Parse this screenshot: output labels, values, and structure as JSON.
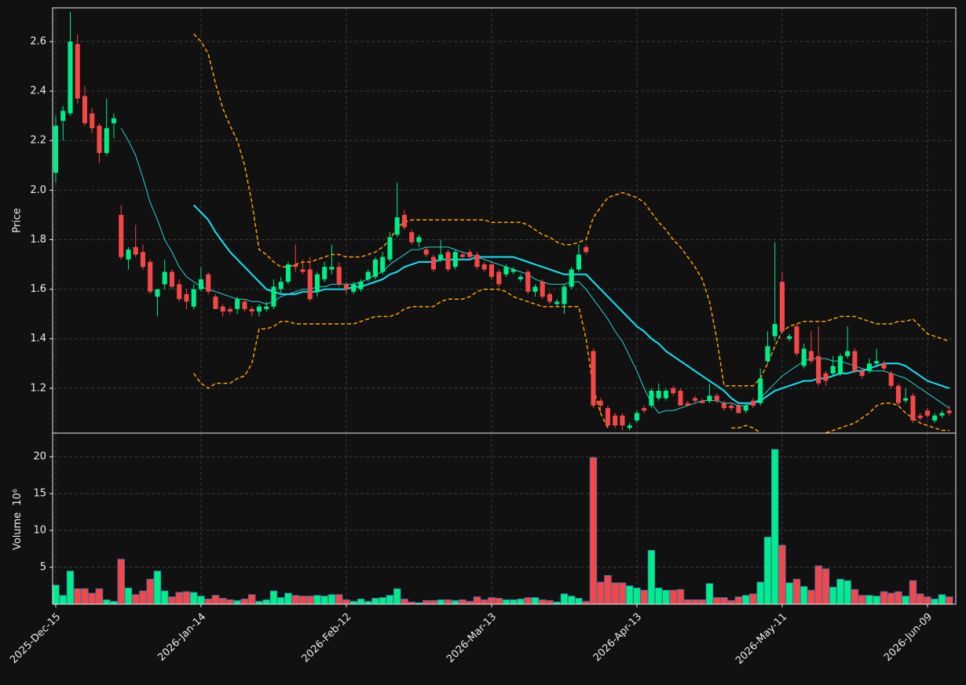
{
  "chart_data": {
    "type": "candlestick",
    "ylabel": "Price",
    "volume_ylabel": "Volume",
    "volume_offset": "10⁶",
    "categories": [
      "2025-Dec-15",
      null,
      null,
      null,
      null,
      null,
      null,
      null,
      null,
      null,
      null,
      null,
      null,
      null,
      null,
      null,
      null,
      null,
      null,
      null,
      "2026-Jan-14",
      null,
      null,
      null,
      null,
      null,
      null,
      null,
      null,
      null,
      null,
      null,
      null,
      null,
      null,
      null,
      null,
      null,
      null,
      null,
      "2026-Feb-12",
      null,
      null,
      null,
      null,
      null,
      null,
      null,
      null,
      null,
      null,
      null,
      null,
      null,
      null,
      null,
      null,
      null,
      null,
      null,
      "2026-Mar-13",
      null,
      null,
      null,
      null,
      null,
      null,
      null,
      null,
      null,
      null,
      null,
      null,
      null,
      null,
      null,
      null,
      null,
      null,
      null,
      "2026-Apr-13",
      null,
      null,
      null,
      null,
      null,
      null,
      null,
      null,
      null,
      null,
      null,
      null,
      null,
      null,
      null,
      null,
      null,
      null,
      null,
      "2026-May-11",
      null,
      null,
      null,
      null,
      null,
      null,
      null,
      null,
      null,
      null,
      null,
      null,
      null,
      null,
      null,
      null,
      null,
      null,
      null,
      "2026-Jun-09",
      null,
      null,
      null
    ],
    "xlim": [
      -0.43,
      123.9
    ],
    "open": [
      2.07,
      2.28,
      2.31,
      2.59,
      2.38,
      2.31,
      2.26,
      2.15,
      2.27,
      1.9,
      1.72,
      1.77,
      1.75,
      1.71,
      1.57,
      1.62,
      1.67,
      1.62,
      1.58,
      1.53,
      1.6,
      1.66,
      1.57,
      1.53,
      1.52,
      1.52,
      1.55,
      1.52,
      1.51,
      1.52,
      1.53,
      1.6,
      1.63,
      1.7,
      1.68,
      1.68,
      1.59,
      1.64,
      1.68,
      1.69,
      1.62,
      1.59,
      1.6,
      1.64,
      1.65,
      1.67,
      1.72,
      1.82,
      1.9,
      1.83,
      1.79,
      1.76,
      1.73,
      1.72,
      1.75,
      1.69,
      1.74,
      1.75,
      1.74,
      1.7,
      1.7,
      1.67,
      1.66,
      1.67,
      1.64,
      1.67,
      1.59,
      1.63,
      1.58,
      1.54,
      1.54,
      1.61,
      1.68,
      1.77,
      1.35,
      1.15,
      1.12,
      1.09,
      1.09,
      1.04,
      1.07,
      1.12,
      1.13,
      1.16,
      1.16,
      1.2,
      1.19,
      1.14,
      1.16,
      1.15,
      1.15,
      1.17,
      1.14,
      1.13,
      1.13,
      1.11,
      1.15,
      1.14,
      1.31,
      1.41,
      1.63,
      1.4,
      1.45,
      1.29,
      1.35,
      1.33,
      1.26,
      1.26,
      1.26,
      1.33,
      1.35,
      1.27,
      1.27,
      1.3,
      1.3,
      1.26,
      1.21,
      1.15,
      1.17,
      1.09,
      1.11,
      1.07,
      1.09,
      1.11
    ],
    "high": [
      2.3,
      2.34,
      2.72,
      2.63,
      2.42,
      2.33,
      2.27,
      2.37,
      2.31,
      1.94,
      1.77,
      1.86,
      1.78,
      1.72,
      1.6,
      1.72,
      1.68,
      1.64,
      1.6,
      1.62,
      1.69,
      1.67,
      1.58,
      1.54,
      1.53,
      1.57,
      1.56,
      1.53,
      1.54,
      1.55,
      1.64,
      1.65,
      1.71,
      1.78,
      1.72,
      1.73,
      1.67,
      1.71,
      1.78,
      1.71,
      1.63,
      1.63,
      1.64,
      1.68,
      1.73,
      1.75,
      1.83,
      2.03,
      1.92,
      1.84,
      1.82,
      1.77,
      1.74,
      1.8,
      1.76,
      1.76,
      1.75,
      1.76,
      1.75,
      1.71,
      1.71,
      1.68,
      1.7,
      1.69,
      1.66,
      1.68,
      1.62,
      1.64,
      1.59,
      1.56,
      1.62,
      1.69,
      1.78,
      1.78,
      1.36,
      1.16,
      1.13,
      1.1,
      1.1,
      1.06,
      1.11,
      1.13,
      1.2,
      1.22,
      1.2,
      1.21,
      1.2,
      1.15,
      1.17,
      1.16,
      1.22,
      1.18,
      1.15,
      1.14,
      1.14,
      1.14,
      1.16,
      1.28,
      1.43,
      1.79,
      1.67,
      1.42,
      1.46,
      1.38,
      1.43,
      1.45,
      1.27,
      1.33,
      1.34,
      1.45,
      1.36,
      1.28,
      1.32,
      1.36,
      1.31,
      1.27,
      1.22,
      1.2,
      1.18,
      1.1,
      1.12,
      1.1,
      1.11,
      1.13
    ],
    "low": [
      2.03,
      2.2,
      2.3,
      2.35,
      2.26,
      2.23,
      2.11,
      2.14,
      2.21,
      1.72,
      1.68,
      1.73,
      1.68,
      1.58,
      1.49,
      1.6,
      1.6,
      1.55,
      1.52,
      1.52,
      1.59,
      1.58,
      1.52,
      1.49,
      1.5,
      1.5,
      1.51,
      1.49,
      1.49,
      1.51,
      1.52,
      1.58,
      1.62,
      1.67,
      1.66,
      1.55,
      1.57,
      1.63,
      1.66,
      1.61,
      1.58,
      1.58,
      1.59,
      1.63,
      1.64,
      1.66,
      1.71,
      1.81,
      1.84,
      1.78,
      1.77,
      1.73,
      1.67,
      1.71,
      1.67,
      1.68,
      1.72,
      1.72,
      1.68,
      1.67,
      1.64,
      1.61,
      1.65,
      1.66,
      1.63,
      1.58,
      1.57,
      1.56,
      1.54,
      1.53,
      1.5,
      1.6,
      1.67,
      1.74,
      1.12,
      1.1,
      1.04,
      1.04,
      1.03,
      1.03,
      1.06,
      1.1,
      1.12,
      1.15,
      1.15,
      1.17,
      1.13,
      1.13,
      1.14,
      1.14,
      1.14,
      1.14,
      1.11,
      1.11,
      1.1,
      1.1,
      1.12,
      1.13,
      1.3,
      1.39,
      1.42,
      1.39,
      1.33,
      1.28,
      1.3,
      1.21,
      1.21,
      1.25,
      1.25,
      1.32,
      1.26,
      1.24,
      1.26,
      1.29,
      1.27,
      1.2,
      1.13,
      1.14,
      1.06,
      1.07,
      1.08,
      1.06,
      1.08,
      1.09
    ],
    "close": [
      2.26,
      2.32,
      2.6,
      2.37,
      2.27,
      2.25,
      2.15,
      2.25,
      2.29,
      1.73,
      1.76,
      1.74,
      1.69,
      1.59,
      1.6,
      1.67,
      1.61,
      1.56,
      1.55,
      1.6,
      1.64,
      1.59,
      1.52,
      1.51,
      1.51,
      1.56,
      1.52,
      1.51,
      1.53,
      1.53,
      1.61,
      1.63,
      1.7,
      1.69,
      1.67,
      1.56,
      1.66,
      1.69,
      1.69,
      1.62,
      1.6,
      1.62,
      1.63,
      1.67,
      1.72,
      1.73,
      1.81,
      1.89,
      1.85,
      1.79,
      1.81,
      1.74,
      1.68,
      1.74,
      1.68,
      1.75,
      1.73,
      1.73,
      1.69,
      1.68,
      1.65,
      1.62,
      1.69,
      1.68,
      1.65,
      1.59,
      1.61,
      1.57,
      1.55,
      1.55,
      1.61,
      1.68,
      1.74,
      1.75,
      1.13,
      1.13,
      1.05,
      1.05,
      1.05,
      1.05,
      1.1,
      1.11,
      1.19,
      1.19,
      1.19,
      1.18,
      1.13,
      1.13,
      1.15,
      1.14,
      1.17,
      1.15,
      1.12,
      1.12,
      1.1,
      1.13,
      1.13,
      1.24,
      1.37,
      1.46,
      1.43,
      1.41,
      1.34,
      1.36,
      1.31,
      1.22,
      1.23,
      1.29,
      1.33,
      1.35,
      1.27,
      1.25,
      1.3,
      1.31,
      1.28,
      1.21,
      1.14,
      1.16,
      1.07,
      1.08,
      1.09,
      1.09,
      1.1,
      1.1
    ],
    "volume": [
      2.6,
      1.2,
      4.5,
      2.1,
      2.1,
      1.5,
      2.1,
      0.6,
      0.4,
      6.1,
      2.2,
      1.3,
      1.8,
      3.4,
      4.5,
      1.8,
      1.0,
      1.6,
      1.7,
      1.6,
      1.1,
      0.7,
      1.2,
      0.8,
      0.6,
      0.5,
      0.7,
      1.3,
      0.4,
      0.6,
      1.8,
      0.9,
      1.5,
      1.2,
      1.1,
      1.1,
      1.2,
      1.1,
      1.3,
      1.3,
      0.6,
      0.4,
      0.7,
      0.4,
      0.8,
      0.9,
      1.2,
      2.1,
      0.7,
      0.3,
      0.2,
      0.5,
      0.5,
      0.6,
      0.6,
      0.5,
      0.6,
      0.4,
      1.0,
      0.6,
      0.9,
      0.8,
      0.6,
      0.6,
      0.7,
      0.9,
      0.9,
      0.6,
      0.5,
      0.3,
      1.4,
      1.1,
      0.8,
      0.4,
      19.9,
      3.0,
      3.9,
      2.9,
      2.9,
      2.5,
      2.2,
      1.9,
      7.3,
      2.2,
      1.9,
      1.9,
      2.0,
      0.6,
      0.6,
      0.6,
      2.8,
      0.9,
      0.9,
      0.5,
      1.0,
      1.2,
      1.4,
      3.0,
      9.1,
      21.0,
      8.0,
      2.9,
      3.4,
      2.4,
      1.9,
      5.2,
      4.8,
      2.3,
      3.4,
      3.2,
      2.0,
      1.2,
      1.2,
      1.1,
      1.7,
      1.5,
      1.7,
      1.1,
      3.2,
      1.4,
      1.0,
      0.7,
      1.3,
      1.0
    ],
    "overlays": [
      {
        "color": "#2ad4d4",
        "width": 1,
        "dash": false,
        "values": [
          null,
          null,
          null,
          null,
          null,
          null,
          null,
          null,
          null,
          2.25,
          2.2,
          2.14,
          2.05,
          1.95,
          1.88,
          1.8,
          1.75,
          1.69,
          1.65,
          1.63,
          1.61,
          1.6,
          1.59,
          1.58,
          1.57,
          1.56,
          1.56,
          1.55,
          1.55,
          1.54,
          1.55,
          1.57,
          1.58,
          1.59,
          1.6,
          1.6,
          1.61,
          1.61,
          1.62,
          1.62,
          1.62,
          1.62,
          1.63,
          1.64,
          1.66,
          1.67,
          1.7,
          1.72,
          1.74,
          1.76,
          1.76,
          1.77,
          1.77,
          1.77,
          1.77,
          1.76,
          1.75,
          1.74,
          1.73,
          1.72,
          1.71,
          1.7,
          1.69,
          1.68,
          1.67,
          1.66,
          1.64,
          1.63,
          1.62,
          1.62,
          1.62,
          1.63,
          1.63,
          1.6,
          1.56,
          1.52,
          1.48,
          1.43,
          1.39,
          1.33,
          1.27,
          1.2,
          1.14,
          1.1,
          1.11,
          1.11,
          1.12,
          1.13,
          1.14,
          1.15,
          1.15,
          1.15,
          1.14,
          1.14,
          1.13,
          1.13,
          1.14,
          1.16,
          1.19,
          1.22,
          1.25,
          1.27,
          1.29,
          1.31,
          1.32,
          1.32,
          1.32,
          1.31,
          1.31,
          1.3,
          1.29,
          1.28,
          1.27,
          1.27,
          1.27,
          1.26,
          1.25,
          1.24,
          1.22,
          1.2,
          1.18,
          1.16,
          1.14,
          1.12
        ]
      },
      {
        "color": "#12e4f7",
        "width": 2,
        "dash": false,
        "values": [
          null,
          null,
          null,
          null,
          null,
          null,
          null,
          null,
          null,
          null,
          null,
          null,
          null,
          null,
          null,
          null,
          null,
          null,
          null,
          1.94,
          1.91,
          1.88,
          1.83,
          1.79,
          1.75,
          1.72,
          1.69,
          1.66,
          1.63,
          1.6,
          1.59,
          1.58,
          1.58,
          1.58,
          1.59,
          1.59,
          1.59,
          1.6,
          1.6,
          1.6,
          1.6,
          1.61,
          1.61,
          1.62,
          1.63,
          1.64,
          1.66,
          1.67,
          1.69,
          1.7,
          1.71,
          1.71,
          1.71,
          1.72,
          1.72,
          1.72,
          1.72,
          1.72,
          1.73,
          1.73,
          1.73,
          1.73,
          1.73,
          1.73,
          1.72,
          1.71,
          1.7,
          1.69,
          1.68,
          1.67,
          1.66,
          1.66,
          1.66,
          1.66,
          1.63,
          1.6,
          1.57,
          1.54,
          1.51,
          1.48,
          1.45,
          1.43,
          1.4,
          1.38,
          1.35,
          1.33,
          1.31,
          1.29,
          1.27,
          1.25,
          1.23,
          1.21,
          1.19,
          1.16,
          1.14,
          1.14,
          1.14,
          1.15,
          1.17,
          1.19,
          1.2,
          1.21,
          1.22,
          1.23,
          1.23,
          1.24,
          1.24,
          1.25,
          1.26,
          1.26,
          1.27,
          1.27,
          1.28,
          1.29,
          1.3,
          1.3,
          1.3,
          1.29,
          1.27,
          1.25,
          1.23,
          1.22,
          1.21,
          1.2
        ]
      },
      {
        "color": "#ffa000",
        "width": 1.5,
        "dash": true,
        "values": [
          null,
          null,
          null,
          null,
          null,
          null,
          null,
          null,
          null,
          null,
          null,
          null,
          null,
          null,
          null,
          null,
          null,
          null,
          null,
          2.63,
          2.6,
          2.55,
          2.43,
          2.33,
          2.26,
          2.2,
          2.1,
          1.95,
          1.76,
          1.74,
          1.71,
          1.69,
          1.69,
          1.7,
          1.71,
          1.71,
          1.72,
          1.73,
          1.74,
          1.74,
          1.73,
          1.73,
          1.73,
          1.74,
          1.75,
          1.77,
          1.8,
          1.85,
          1.87,
          1.88,
          1.88,
          1.88,
          1.88,
          1.88,
          1.88,
          1.88,
          1.88,
          1.88,
          1.88,
          1.88,
          1.87,
          1.87,
          1.87,
          1.87,
          1.87,
          1.86,
          1.84,
          1.82,
          1.81,
          1.79,
          1.78,
          1.78,
          1.79,
          1.8,
          1.89,
          1.93,
          1.97,
          1.98,
          1.99,
          1.98,
          1.97,
          1.95,
          1.91,
          1.87,
          1.84,
          1.8,
          1.77,
          1.73,
          1.69,
          1.64,
          1.55,
          1.4,
          1.21,
          1.21,
          1.21,
          1.21,
          1.21,
          1.24,
          1.3,
          1.37,
          1.43,
          1.45,
          1.46,
          1.47,
          1.47,
          1.47,
          1.47,
          1.48,
          1.49,
          1.49,
          1.49,
          1.48,
          1.47,
          1.46,
          1.46,
          1.46,
          1.47,
          1.47,
          1.48,
          1.45,
          1.42,
          1.41,
          1.4,
          1.39
        ]
      },
      {
        "color": "#ffa000",
        "width": 1.5,
        "dash": true,
        "values": [
          null,
          null,
          null,
          null,
          null,
          null,
          null,
          null,
          null,
          null,
          null,
          null,
          null,
          null,
          null,
          null,
          null,
          null,
          null,
          1.26,
          1.22,
          1.2,
          1.22,
          1.22,
          1.22,
          1.24,
          1.25,
          1.3,
          1.44,
          1.44,
          1.45,
          1.47,
          1.47,
          1.46,
          1.46,
          1.46,
          1.46,
          1.46,
          1.46,
          1.46,
          1.46,
          1.46,
          1.47,
          1.48,
          1.49,
          1.49,
          1.49,
          1.5,
          1.52,
          1.53,
          1.53,
          1.53,
          1.53,
          1.55,
          1.56,
          1.56,
          1.56,
          1.57,
          1.59,
          1.6,
          1.6,
          1.6,
          1.59,
          1.57,
          1.56,
          1.55,
          1.54,
          1.53,
          1.53,
          1.53,
          1.53,
          1.53,
          1.53,
          1.4,
          1.2,
          1.1,
          1.04,
          null,
          null,
          null,
          null,
          null,
          null,
          null,
          null,
          null,
          null,
          null,
          null,
          null,
          null,
          null,
          null,
          1.04,
          1.04,
          1.05,
          1.04,
          1.02,
          null,
          null,
          null,
          null,
          null,
          null,
          null,
          null,
          1.02,
          1.03,
          1.04,
          1.05,
          1.06,
          1.08,
          1.1,
          1.13,
          1.14,
          1.14,
          1.13,
          1.1,
          1.08,
          1.06,
          1.05,
          1.04,
          1.03,
          1.03
        ]
      }
    ],
    "ylim": [
      1.019,
      2.736
    ],
    "yticks": [
      1.2,
      1.4,
      1.6,
      1.8,
      {
        "value": 2,
        "label": "2.0"
      },
      2.2,
      2.4,
      2.6
    ],
    "volume_ylim": [
      0,
      23.2
    ],
    "volume_yticks": [
      5,
      10,
      15,
      20
    ],
    "grid": true,
    "up_color": "#00ee88",
    "down_color": "#f44848",
    "volume_edge_color": "#3f6fb5"
  }
}
